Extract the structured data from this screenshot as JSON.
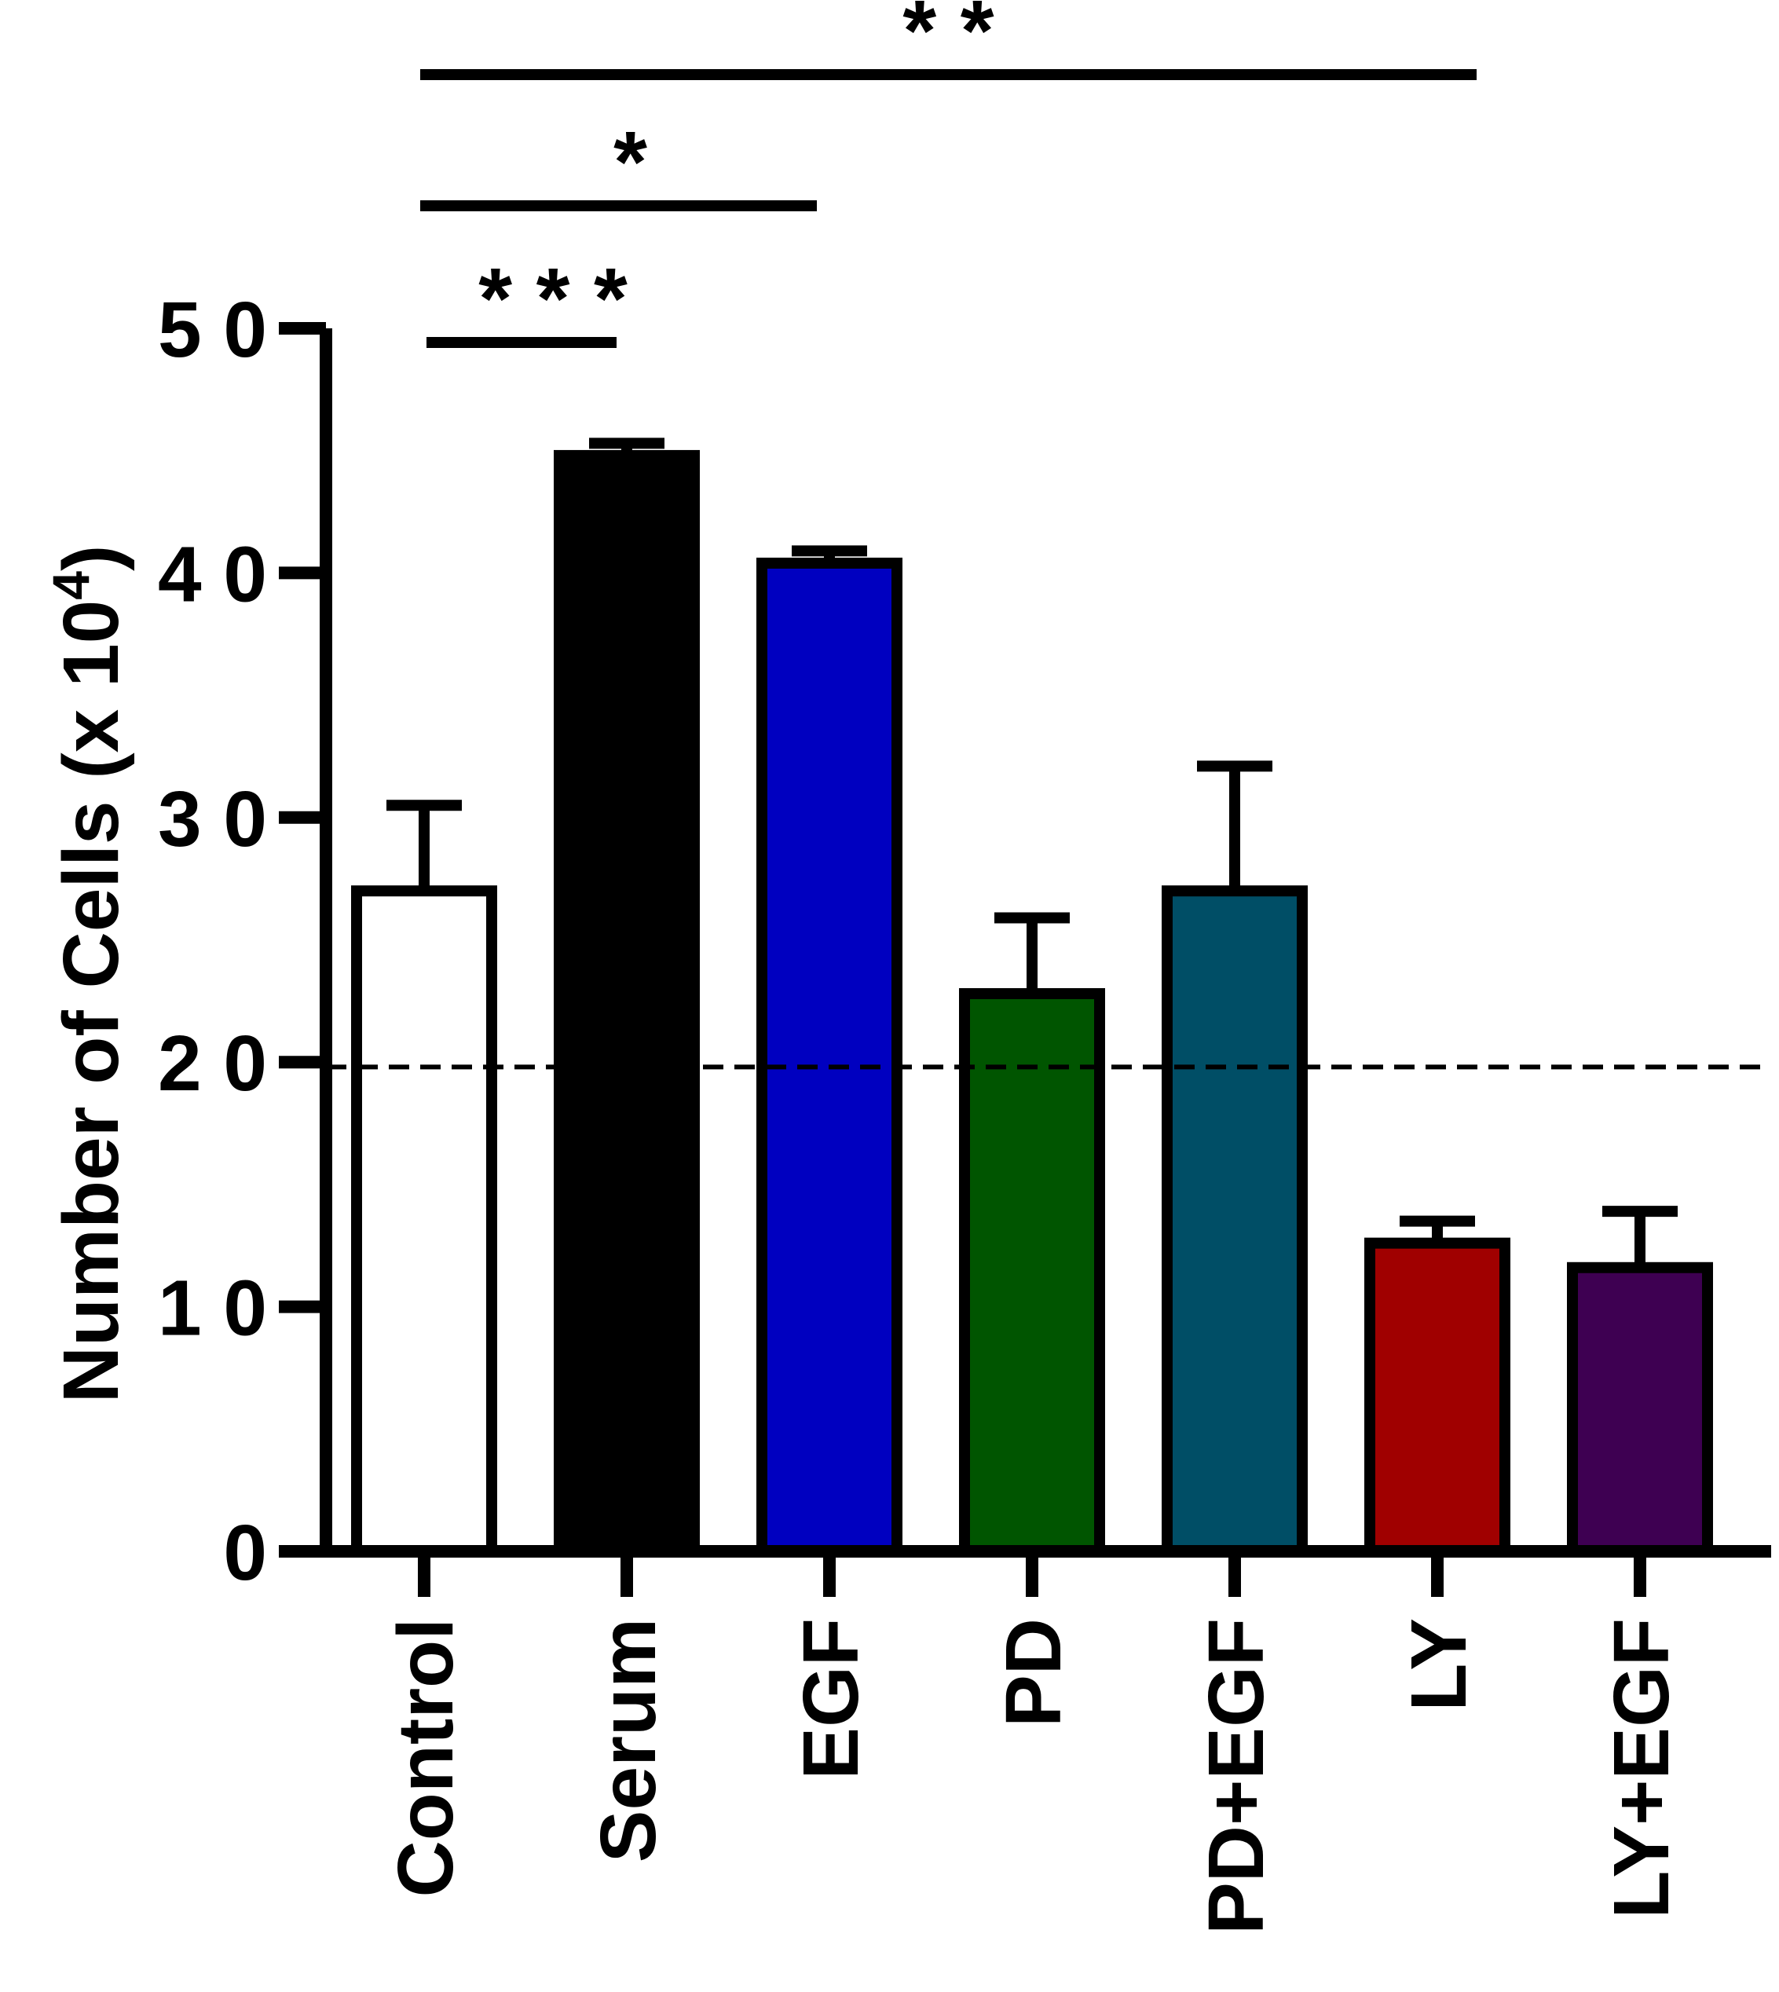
{
  "chart_data": {
    "type": "bar",
    "title": "",
    "xlabel": "",
    "ylabel": "Number of Cells (x 10",
    "ylabel_superscript": "4",
    "ylabel_close": ")",
    "ylim": [
      0,
      50
    ],
    "yticks": [
      {
        "value": 0,
        "label": "0"
      },
      {
        "value": 10,
        "label": "1 0"
      },
      {
        "value": 20,
        "label": "2 0"
      },
      {
        "value": 30,
        "label": "3 0"
      },
      {
        "value": 40,
        "label": "4 0"
      },
      {
        "value": 50,
        "label": "5 0"
      }
    ],
    "categories": [
      "Control",
      "Serum",
      "EGF",
      "PD",
      "PD+EGF",
      "LY",
      "LY+EGF"
    ],
    "values": [
      27,
      44.8,
      40.4,
      22.8,
      27,
      12.6,
      11.6
    ],
    "errors": [
      3.5,
      0.5,
      0.5,
      3.1,
      5.1,
      0.9,
      2.3
    ],
    "colors": [
      "#ffffff",
      "#000000",
      "#0000c0",
      "#005500",
      "#004e66",
      "#a00000",
      "#3e0052"
    ],
    "reference_line": {
      "value": 19.8,
      "style": "dashed"
    },
    "significance": [
      {
        "from": "Control",
        "to": "Serum",
        "label": "* * *",
        "level": 1
      },
      {
        "from": "Control",
        "to": "EGF",
        "label": "*",
        "level": 2
      },
      {
        "from": "Control",
        "to": "LY",
        "label": "* *",
        "level": 3
      }
    ],
    "grid": false,
    "legend": "none"
  }
}
